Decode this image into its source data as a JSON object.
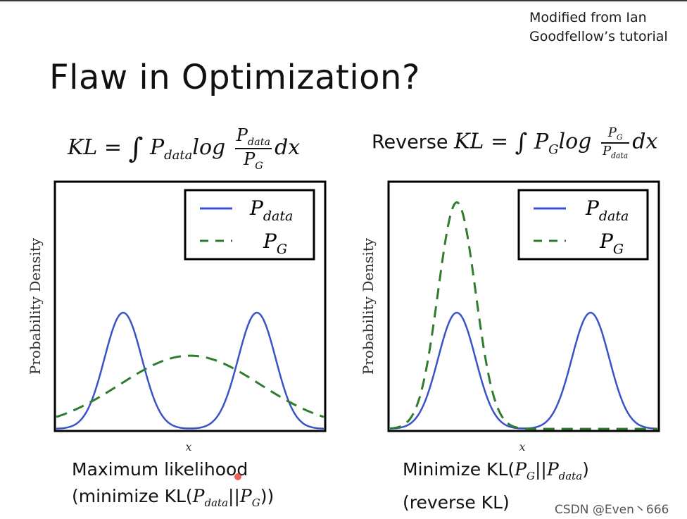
{
  "credit": {
    "line1": "Modified from Ian",
    "line2": "Goodfellow’s tutorial"
  },
  "title": "Flaw in Optimization?",
  "formula_left": {
    "prefix": "KL = ",
    "integral": "∫",
    "p": "P",
    "p_sub": "data",
    "log": "log",
    "num": "P",
    "num_sub": "data",
    "den": "P",
    "den_sub": "G",
    "dx": "dx"
  },
  "formula_right": {
    "word": "Reverse ",
    "prefix": "KL = ",
    "integral": "∫",
    "p": "P",
    "p_sub": "G",
    "log": "log",
    "num": "P",
    "num_sub": "G",
    "den": "P",
    "den_sub": "data",
    "dx": "dx"
  },
  "plots": {
    "ylabel": "Probability Density",
    "xlabel": "x",
    "legend_data": "P",
    "legend_data_sub": "data",
    "legend_g": "P",
    "legend_g_sub": "G"
  },
  "colors": {
    "p_data": "#3a52c8",
    "p_g": "#2e7d2e"
  },
  "captions": {
    "left_line1": "Maximum likelihood",
    "left_line2_pre": "(minimize KL(",
    "left_a": "P",
    "left_a_sub": "data",
    "left_sep": "||",
    "left_b": "P",
    "left_b_sub": "G",
    "left_line2_post": "))",
    "right_line1_pre": "Minimize KL(",
    "right_a": "P",
    "right_a_sub": "G",
    "right_sep": "||",
    "right_b": "P",
    "right_b_sub": "data",
    "right_line1_post": ")",
    "right_line2": "(reverse KL)"
  },
  "chart_data": [
    {
      "type": "line",
      "ylabel": "Probability Density",
      "xlabel": "x",
      "grid": false,
      "legend_position": "top-right",
      "series": [
        {
          "name": "P_data",
          "style": "solid",
          "shape": "bimodal",
          "modes": [
            -1,
            1
          ],
          "peak_relative": 1.0
        },
        {
          "name": "P_G",
          "style": "dashed",
          "shape": "unimodal-wide",
          "mode": 0,
          "peak_relative": 0.63
        }
      ]
    },
    {
      "type": "line",
      "ylabel": "Probability Density",
      "xlabel": "x",
      "grid": false,
      "legend_position": "top-right",
      "series": [
        {
          "name": "P_data",
          "style": "solid",
          "shape": "bimodal",
          "modes": [
            -1,
            1
          ],
          "peak_relative": 1.0
        },
        {
          "name": "P_G",
          "style": "dashed",
          "shape": "unimodal-narrow",
          "mode": -1,
          "peak_relative": 1.95
        }
      ]
    }
  ],
  "watermark": "CSDN @Even丶666"
}
